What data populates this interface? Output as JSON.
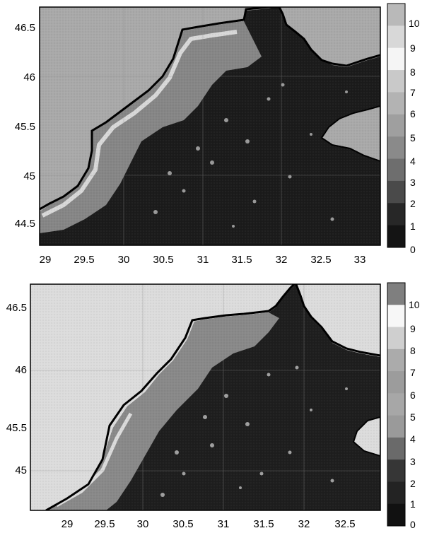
{
  "panels": [
    {
      "id": "top",
      "lon_ticks": [
        "29",
        "29.5",
        "30",
        "30.5",
        "31",
        "31.5",
        "32",
        "32.5",
        "33"
      ],
      "lat_ticks": [
        "46.5",
        "46",
        "45.5",
        "45",
        "44.5"
      ],
      "colorbar_ticks": [
        "10",
        "9",
        "8",
        "7",
        "6",
        "5",
        "4",
        "3",
        "2",
        "1",
        "0"
      ],
      "colorbar_colors": [
        "#b9b9b9",
        "#d8d8d8",
        "#f5f5f5",
        "#c9c9c9",
        "#b3b3b3",
        "#9f9f9f",
        "#8a8a8a",
        "#6e6e6e",
        "#4a4a4a",
        "#272727",
        "#141414"
      ],
      "lon_range": [
        28.9,
        33.25
      ],
      "lat_range": [
        44.28,
        46.72
      ]
    },
    {
      "id": "bottom",
      "lon_ticks": [
        "29",
        "29.5",
        "30",
        "30.5",
        "31",
        "31.5",
        "32",
        "32.5"
      ],
      "lat_ticks": [
        "46.5",
        "46",
        "45.5",
        "45"
      ],
      "colorbar_ticks": [
        "10",
        "9",
        "8",
        "7",
        "6",
        "5",
        "4",
        "3",
        "2",
        "1",
        "0"
      ],
      "colorbar_colors": [
        "#7f7f7f",
        "#f7f7f7",
        "#cfcfcf",
        "#ababab",
        "#9c9c9c",
        "#a7a7a7",
        "#9a9a9a",
        "#6a6a6a",
        "#363636",
        "#232323",
        "#111111"
      ],
      "lon_range": [
        28.67,
        33.0
      ],
      "lat_range": [
        44.55,
        46.88
      ]
    }
  ],
  "colors": {
    "land": "#a9a9a9",
    "land_light": "#dcdcdc",
    "sea_dark": "#1c1c1c",
    "sea_mid": "#7d7d7d",
    "coast_highlight": "#efefef"
  }
}
